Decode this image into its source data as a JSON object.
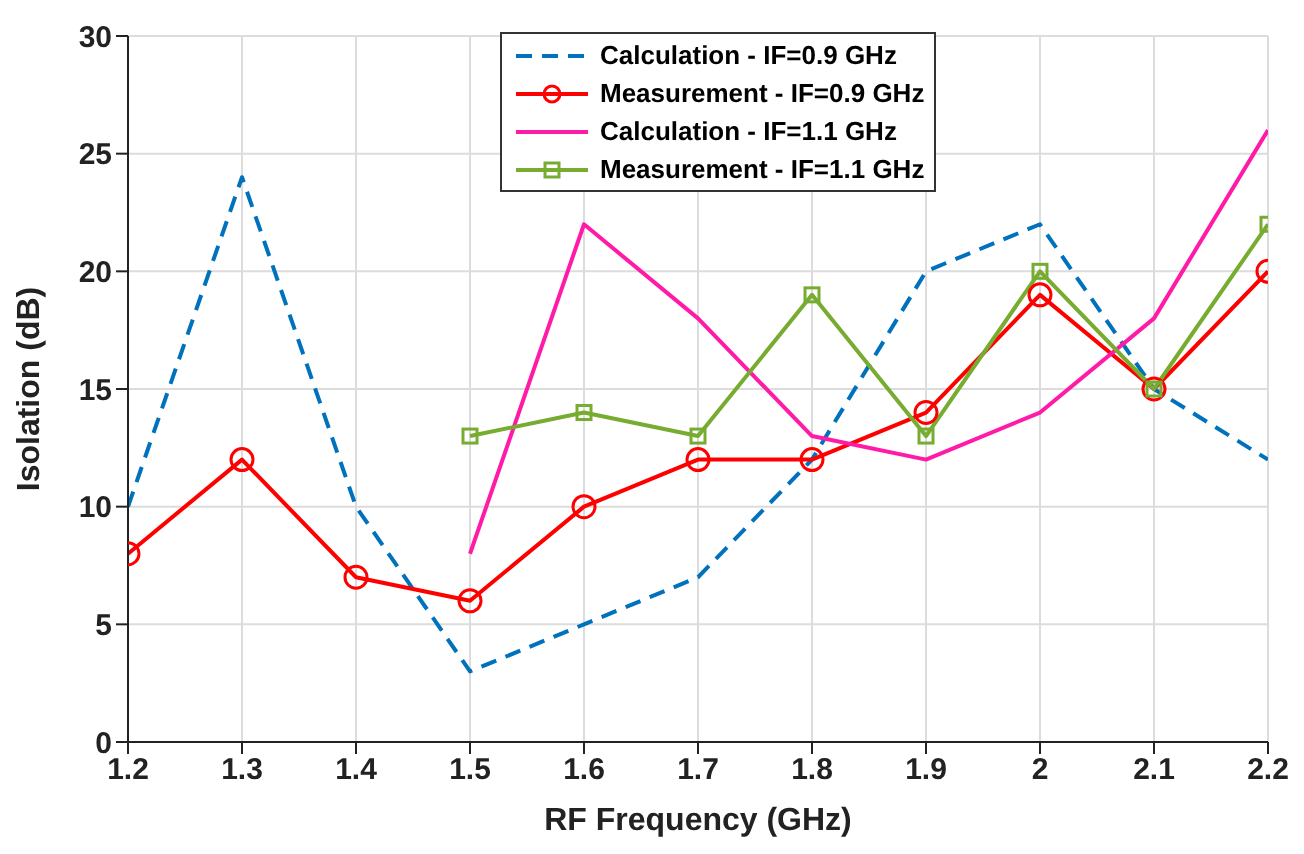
{
  "chart_data": {
    "type": "line",
    "xlabel": "RF Frequency (GHz)",
    "ylabel": "Isolation (dB)",
    "x": [
      1.2,
      1.3,
      1.4,
      1.5,
      1.6,
      1.7,
      1.8,
      1.9,
      2,
      2.1,
      2.2
    ],
    "series": [
      {
        "name": "Calculation - IF=0.9 GHz",
        "color": "#0072bd",
        "line_style": "dashed",
        "marker": "none",
        "values": [
          10,
          24,
          10,
          3,
          5,
          7,
          12,
          20,
          22,
          15,
          12
        ]
      },
      {
        "name": "Measurement - IF=0.9 GHz",
        "color": "#ff0000",
        "line_style": "solid",
        "marker": "circle",
        "values": [
          8,
          12,
          7,
          6,
          10,
          12,
          12,
          14,
          19,
          15,
          20
        ]
      },
      {
        "name": "Calculation - IF=1.1 GHz",
        "color": "#ff1aa8",
        "line_style": "solid",
        "marker": "none",
        "values": [
          null,
          null,
          null,
          8,
          22,
          18,
          13,
          12,
          14,
          18,
          26
        ]
      },
      {
        "name": "Measurement - IF=1.1 GHz",
        "color": "#77ac30",
        "line_style": "solid",
        "marker": "square",
        "values": [
          null,
          null,
          null,
          13,
          14,
          13,
          19,
          13,
          20,
          15,
          22
        ]
      }
    ],
    "xlim": [
      1.2,
      2.2
    ],
    "xticks": [
      1.2,
      1.3,
      1.4,
      1.5,
      1.6,
      1.7,
      1.8,
      1.9,
      2,
      2.1,
      2.2
    ],
    "ylim": [
      0,
      30
    ],
    "yticks": [
      0,
      5,
      10,
      15,
      20,
      25,
      30
    ],
    "grid": true,
    "legend": "top"
  }
}
